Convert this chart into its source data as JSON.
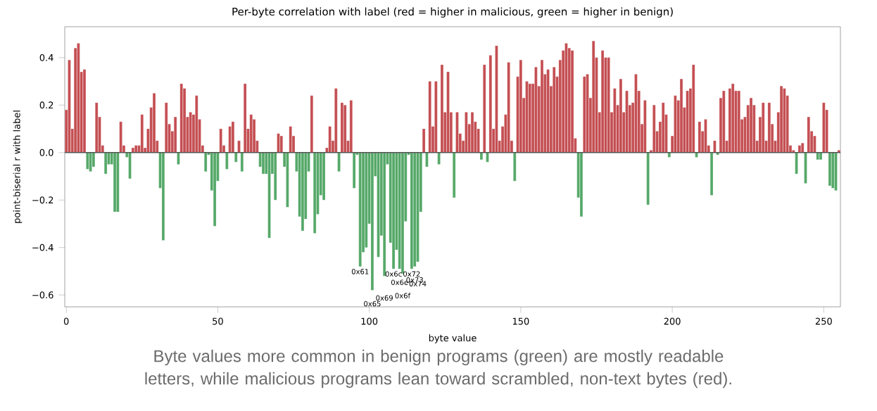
{
  "chart_data": {
    "type": "bar",
    "title": "Per-byte correlation with label (red = higher in malicious, green = higher in benign)",
    "xlabel": "byte value",
    "ylabel": "point-biserial r with label",
    "x": [
      0,
      1,
      2,
      3,
      4,
      5,
      6,
      7,
      8,
      9,
      10,
      11,
      12,
      13,
      14,
      15,
      16,
      17,
      18,
      19,
      20,
      21,
      22,
      23,
      24,
      25,
      26,
      27,
      28,
      29,
      30,
      31,
      32,
      33,
      34,
      35,
      36,
      37,
      38,
      39,
      40,
      41,
      42,
      43,
      44,
      45,
      46,
      47,
      48,
      49,
      50,
      51,
      52,
      53,
      54,
      55,
      56,
      57,
      58,
      59,
      60,
      61,
      62,
      63,
      64,
      65,
      66,
      67,
      68,
      69,
      70,
      71,
      72,
      73,
      74,
      75,
      76,
      77,
      78,
      79,
      80,
      81,
      82,
      83,
      84,
      85,
      86,
      87,
      88,
      89,
      90,
      91,
      92,
      93,
      94,
      95,
      96,
      97,
      98,
      99,
      100,
      101,
      102,
      103,
      104,
      105,
      106,
      107,
      108,
      109,
      110,
      111,
      112,
      113,
      114,
      115,
      116,
      117,
      118,
      119,
      120,
      121,
      122,
      123,
      124,
      125,
      126,
      127,
      128,
      129,
      130,
      131,
      132,
      133,
      134,
      135,
      136,
      137,
      138,
      139,
      140,
      141,
      142,
      143,
      144,
      145,
      146,
      147,
      148,
      149,
      150,
      151,
      152,
      153,
      154,
      155,
      156,
      157,
      158,
      159,
      160,
      161,
      162,
      163,
      164,
      165,
      166,
      167,
      168,
      169,
      170,
      171,
      172,
      173,
      174,
      175,
      176,
      177,
      178,
      179,
      180,
      181,
      182,
      183,
      184,
      185,
      186,
      187,
      188,
      189,
      190,
      191,
      192,
      193,
      194,
      195,
      196,
      197,
      198,
      199,
      200,
      201,
      202,
      203,
      204,
      205,
      206,
      207,
      208,
      209,
      210,
      211,
      212,
      213,
      214,
      215,
      216,
      217,
      218,
      219,
      220,
      221,
      222,
      223,
      224,
      225,
      226,
      227,
      228,
      229,
      230,
      231,
      232,
      233,
      234,
      235,
      236,
      237,
      238,
      239,
      240,
      241,
      242,
      243,
      244,
      245,
      246,
      247,
      248,
      249,
      250,
      251,
      252,
      253,
      254,
      255
    ],
    "values": [
      0.18,
      0.39,
      0.1,
      0.44,
      0.46,
      0.34,
      0.35,
      -0.07,
      -0.08,
      -0.06,
      0.21,
      0.15,
      0.03,
      -0.09,
      -0.05,
      -0.05,
      -0.25,
      -0.25,
      0.13,
      0.03,
      -0.02,
      -0.11,
      0.02,
      0.03,
      0.03,
      0.16,
      0.02,
      0.1,
      0.19,
      0.25,
      0.05,
      -0.15,
      -0.37,
      0.21,
      0.12,
      0.09,
      0.15,
      -0.05,
      0.29,
      0.27,
      0.15,
      0.17,
      0.16,
      0.24,
      0.14,
      0.03,
      -0.08,
      -0.01,
      -0.16,
      -0.31,
      -0.12,
      0.1,
      0.03,
      -0.07,
      0.11,
      0.13,
      -0.04,
      0.05,
      -0.08,
      0.29,
      0.1,
      0.16,
      0.14,
      0.05,
      -0.06,
      -0.09,
      -0.09,
      -0.36,
      -0.09,
      -0.2,
      0.08,
      0.07,
      -0.06,
      -0.23,
      0.11,
      0.07,
      -0.08,
      -0.27,
      -0.33,
      -0.28,
      -0.08,
      0.24,
      -0.34,
      -0.26,
      -0.18,
      -0.2,
      0.02,
      0.11,
      0.05,
      0.27,
      -0.08,
      0.21,
      0.2,
      0.05,
      0.22,
      -0.15,
      -0.01,
      -0.48,
      -0.42,
      -0.4,
      -0.3,
      -0.58,
      -0.1,
      -0.44,
      -0.35,
      -0.52,
      -0.05,
      -0.38,
      -0.49,
      -0.41,
      -0.49,
      -0.51,
      -0.29,
      -0.01,
      -0.49,
      -0.48,
      -0.46,
      -0.25,
      0.1,
      -0.06,
      0.3,
      0.11,
      0.3,
      -0.05,
      0.37,
      0.17,
      0.34,
      0.17,
      -0.19,
      0.17,
      0.08,
      0.05,
      0.17,
      0.12,
      0.17,
      0.13,
      0.1,
      -0.03,
      0.37,
      -0.04,
      0.41,
      0.1,
      0.45,
      0.05,
      0.11,
      0.16,
      0.38,
      0.05,
      -0.12,
      0.32,
      0.39,
      0.23,
      0.3,
      0.29,
      0.29,
      0.36,
      0.28,
      0.39,
      0.33,
      0.35,
      0.28,
      0.36,
      0.32,
      0.39,
      0.43,
      0.46,
      0.44,
      0.43,
      0.06,
      -0.19,
      -0.27,
      0.32,
      0.33,
      0.23,
      0.47,
      0.4,
      0.17,
      0.43,
      0.4,
      0.4,
      0.17,
      0.27,
      0.2,
      0.31,
      0.17,
      0.26,
      0.2,
      0.21,
      0.33,
      0.26,
      0.12,
      0.22,
      -0.22,
      0.01,
      0.2,
      0.09,
      0.13,
      0.21,
      0.16,
      -0.02,
      0.07,
      0.24,
      0.22,
      0.31,
      0.19,
      0.26,
      0.27,
      0.37,
      -0.02,
      0.13,
      0.09,
      0.14,
      0.03,
      -0.18,
      0.05,
      -0.01,
      0.23,
      0.26,
      0.05,
      0.27,
      0.29,
      0.26,
      0.26,
      0.14,
      0.15,
      0.2,
      0.23,
      0.2,
      0.05,
      0.15,
      0.21,
      0.05,
      0.21,
      0.12,
      0.05,
      0.17,
      0.28,
      0.27,
      0.24,
      0.03,
      0.01,
      -0.09,
      0.03,
      0.04,
      -0.13,
      0.15,
      0.09,
      0.07,
      -0.03,
      -0.03,
      0.21,
      0.18,
      -0.14,
      -0.15,
      -0.16,
      0.01
    ],
    "colors": [
      "#c44e52",
      "#c44e52",
      "#c44e52",
      "#c44e52",
      "#c44e52",
      "#c44e52",
      "#c44e52",
      "#55a868",
      "#55a868",
      "#55a868",
      "#c44e52",
      "#c44e52",
      "#c44e52",
      "#55a868",
      "#55a868",
      "#55a868",
      "#55a868",
      "#55a868",
      "#c44e52",
      "#c44e52",
      "#55a868",
      "#55a868",
      "#c44e52",
      "#c44e52",
      "#c44e52",
      "#c44e52",
      "#c44e52",
      "#c44e52",
      "#c44e52",
      "#c44e52",
      "#c44e52",
      "#55a868",
      "#55a868",
      "#c44e52",
      "#c44e52",
      "#c44e52",
      "#c44e52",
      "#55a868",
      "#c44e52",
      "#c44e52",
      "#c44e52",
      "#c44e52",
      "#c44e52",
      "#c44e52",
      "#c44e52",
      "#c44e52",
      "#55a868",
      "#55a868",
      "#55a868",
      "#55a868",
      "#55a868",
      "#c44e52",
      "#c44e52",
      "#55a868",
      "#c44e52",
      "#c44e52",
      "#55a868",
      "#c44e52",
      "#55a868",
      "#c44e52",
      "#c44e52",
      "#c44e52",
      "#c44e52",
      "#c44e52",
      "#55a868",
      "#55a868",
      "#55a868",
      "#55a868",
      "#55a868",
      "#55a868",
      "#c44e52",
      "#c44e52",
      "#55a868",
      "#55a868",
      "#c44e52",
      "#c44e52",
      "#55a868",
      "#55a868",
      "#55a868",
      "#55a868",
      "#55a868",
      "#c44e52",
      "#55a868",
      "#55a868",
      "#55a868",
      "#55a868",
      "#c44e52",
      "#c44e52",
      "#c44e52",
      "#c44e52",
      "#55a868",
      "#c44e52",
      "#c44e52",
      "#c44e52",
      "#c44e52",
      "#55a868",
      "#55a868",
      "#55a868",
      "#55a868",
      "#55a868",
      "#55a868",
      "#55a868",
      "#55a868",
      "#55a868",
      "#55a868",
      "#55a868",
      "#55a868",
      "#55a868",
      "#55a868",
      "#55a868",
      "#55a868",
      "#55a868",
      "#55a868",
      "#55a868",
      "#55a868",
      "#55a868",
      "#55a868",
      "#55a868",
      "#c44e52",
      "#55a868",
      "#c44e52",
      "#c44e52",
      "#c44e52",
      "#55a868",
      "#c44e52",
      "#c44e52",
      "#c44e52",
      "#c44e52",
      "#55a868",
      "#c44e52",
      "#c44e52",
      "#c44e52",
      "#c44e52",
      "#c44e52",
      "#c44e52",
      "#c44e52",
      "#c44e52",
      "#55a868",
      "#c44e52",
      "#55a868",
      "#c44e52",
      "#c44e52",
      "#c44e52",
      "#c44e52",
      "#c44e52",
      "#c44e52",
      "#c44e52",
      "#c44e52",
      "#55a868",
      "#c44e52",
      "#c44e52",
      "#c44e52",
      "#c44e52",
      "#c44e52",
      "#c44e52",
      "#c44e52",
      "#c44e52",
      "#c44e52",
      "#c44e52",
      "#c44e52",
      "#c44e52",
      "#c44e52",
      "#c44e52",
      "#c44e52",
      "#c44e52",
      "#c44e52",
      "#c44e52",
      "#c44e52",
      "#c44e52",
      "#55a868",
      "#55a868",
      "#c44e52",
      "#c44e52",
      "#c44e52",
      "#c44e52",
      "#c44e52",
      "#c44e52",
      "#c44e52",
      "#c44e52",
      "#c44e52",
      "#c44e52",
      "#c44e52",
      "#c44e52",
      "#c44e52",
      "#c44e52",
      "#c44e52",
      "#c44e52",
      "#c44e52",
      "#c44e52",
      "#c44e52",
      "#c44e52",
      "#c44e52",
      "#55a868",
      "#c44e52",
      "#c44e52",
      "#c44e52",
      "#c44e52",
      "#c44e52",
      "#c44e52",
      "#55a868",
      "#c44e52",
      "#c44e52",
      "#c44e52",
      "#c44e52",
      "#c44e52",
      "#c44e52",
      "#c44e52",
      "#c44e52",
      "#55a868",
      "#c44e52",
      "#c44e52",
      "#c44e52",
      "#c44e52",
      "#55a868",
      "#c44e52",
      "#55a868",
      "#c44e52",
      "#c44e52",
      "#c44e52",
      "#c44e52",
      "#c44e52",
      "#c44e52",
      "#c44e52",
      "#c44e52",
      "#c44e52",
      "#c44e52",
      "#c44e52",
      "#c44e52",
      "#c44e52",
      "#c44e52",
      "#c44e52",
      "#c44e52",
      "#c44e52",
      "#c44e52",
      "#c44e52",
      "#c44e52",
      "#c44e52",
      "#c44e52",
      "#c44e52",
      "#c44e52",
      "#c44e52",
      "#55a868",
      "#c44e52",
      "#c44e52",
      "#55a868",
      "#c44e52",
      "#c44e52",
      "#c44e52",
      "#55a868",
      "#55a868",
      "#c44e52",
      "#c44e52",
      "#55a868",
      "#55a868",
      "#55a868",
      "#c44e52"
    ],
    "xlim": [
      -0.5,
      255.5
    ],
    "ylim": [
      -0.65,
      0.53
    ],
    "xticks": [
      0,
      50,
      100,
      150,
      200,
      250
    ],
    "yticks": [
      {
        "value": -0.6,
        "label": "−0.6"
      },
      {
        "value": -0.4,
        "label": "−0.4"
      },
      {
        "value": -0.2,
        "label": "−0.2"
      },
      {
        "value": 0,
        "label": "0.0"
      },
      {
        "value": 0.2,
        "label": "0.2"
      },
      {
        "value": 0.4,
        "label": "0.4"
      }
    ],
    "ref_lines": [
      {
        "axis": "y",
        "value": 0,
        "color": "#555555"
      }
    ],
    "annotations": [
      {
        "text": "0x61",
        "x": 97,
        "y": -0.48
      },
      {
        "text": "0x65",
        "x": 101,
        "y": -0.58
      },
      {
        "text": "0x69",
        "x": 105,
        "y": -0.52
      },
      {
        "text": "0x6c",
        "x": 108,
        "y": -0.49
      },
      {
        "text": "0x6e",
        "x": 110,
        "y": -0.49
      },
      {
        "text": "0x6f",
        "x": 111,
        "y": -0.51
      },
      {
        "text": "0x72",
        "x": 114,
        "y": -0.49
      },
      {
        "text": "0x73",
        "x": 115,
        "y": -0.48
      },
      {
        "text": "0x74",
        "x": 116,
        "y": -0.46
      },
      "Byte values more common in benign programs (green) are mostly readable letters, while malicious programs lean toward scrambled, non-text bytes (red)."
    ]
  }
}
